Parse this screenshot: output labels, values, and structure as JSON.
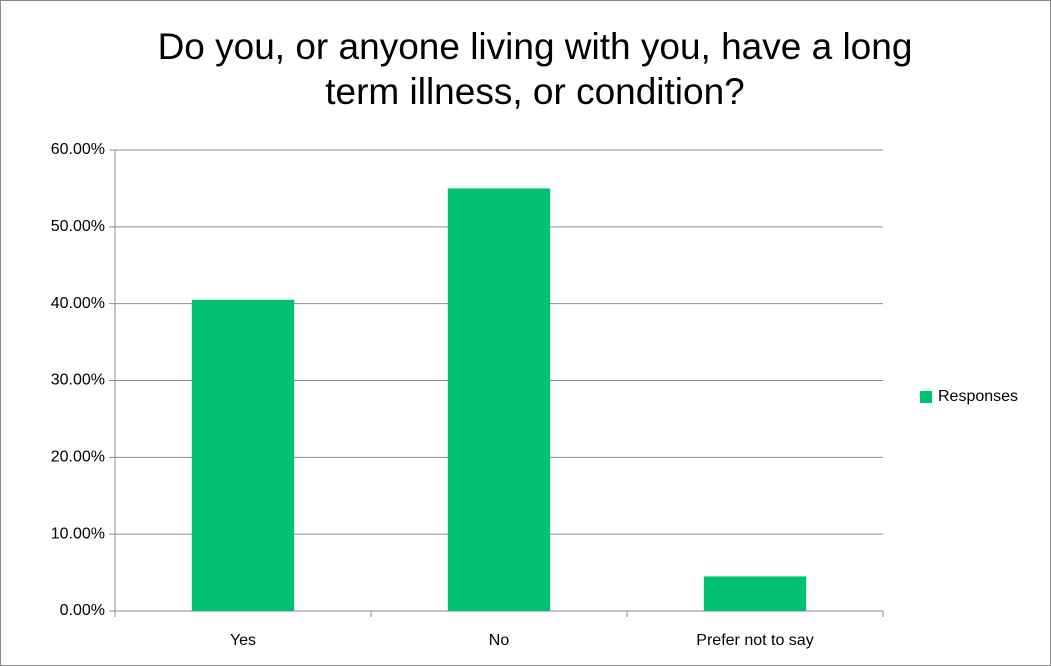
{
  "chart_data": {
    "type": "bar",
    "title": "Do you, or anyone living with you, have a long term illness, or condition?",
    "categories": [
      "Yes",
      "No",
      "Prefer not to say"
    ],
    "series": [
      {
        "name": "Responses",
        "color": "#00c16e",
        "values": [
          40.5,
          55.0,
          4.5
        ]
      }
    ],
    "ylim": [
      0,
      60
    ],
    "yticks": [
      {
        "value": 0,
        "label": "0.00%"
      },
      {
        "value": 10,
        "label": "10.00%"
      },
      {
        "value": 20,
        "label": "20.00%"
      },
      {
        "value": 30,
        "label": "30.00%"
      },
      {
        "value": 40,
        "label": "40.00%"
      },
      {
        "value": 50,
        "label": "50.00%"
      },
      {
        "value": 60,
        "label": "60.00%"
      }
    ],
    "grid": true,
    "legend": "right"
  }
}
